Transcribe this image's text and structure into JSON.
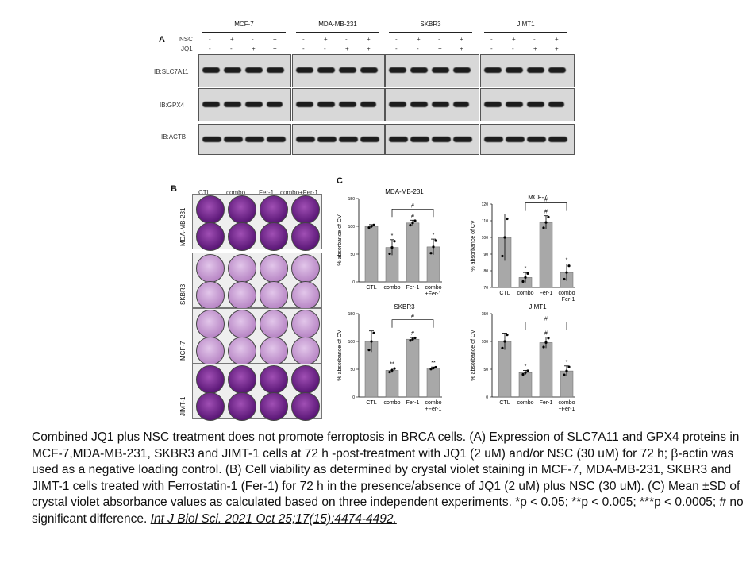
{
  "panel_a": {
    "letter": "A",
    "cell_lines": [
      "MCF-7",
      "MDA-MB-231",
      "SKBR3",
      "JIMT1"
    ],
    "row_labels": [
      "NSC",
      "JQ1"
    ],
    "nsc_signs": [
      "-",
      "+",
      "-",
      "+"
    ],
    "jq1_signs": [
      "-",
      "-",
      "+",
      "+"
    ],
    "blots": [
      "IB:SLC7A11",
      "IB:GPX4",
      "IB:ACTB"
    ]
  },
  "panel_b": {
    "letter": "B",
    "columns": [
      "CTL",
      "combo",
      "Fer-1",
      "combo+Fer-1"
    ],
    "rows": [
      "MDA-MB-231",
      "SKBR3",
      "MCF-7",
      "JIMT-1"
    ]
  },
  "chart_data": [
    {
      "type": "bar",
      "title": "MDA-MB-231",
      "ylabel": "% absorbance of CV",
      "categories": [
        "CTL",
        "combo",
        "Fer-1",
        "combo\n+Fer-1"
      ],
      "values": [
        100,
        62,
        106,
        63
      ],
      "errors": [
        3,
        14,
        5,
        14
      ],
      "ylim": [
        0,
        150
      ],
      "yticks": [
        0,
        50,
        100,
        150
      ],
      "marks": [
        "",
        "*",
        "#",
        "*"
      ],
      "bracket": "#"
    },
    {
      "type": "bar",
      "title": "MCF-7",
      "ylabel": "% absorbance of CV",
      "categories": [
        "CTL",
        "combo",
        "Fer-1",
        "combo\n+Fer-1"
      ],
      "values": [
        100,
        76,
        109,
        79
      ],
      "errors": [
        14,
        3,
        4,
        5
      ],
      "ylim": [
        70,
        120
      ],
      "yticks": [
        70,
        80,
        90,
        100,
        110,
        120
      ],
      "marks": [
        "",
        "*",
        "#",
        "*"
      ],
      "bracket": "#"
    },
    {
      "type": "bar",
      "title": "SKBR3",
      "ylabel": "% absorbance of CV",
      "categories": [
        "CTL",
        "combo",
        "Fer-1",
        "combo\n+Fer-1"
      ],
      "values": [
        100,
        48,
        104,
        52
      ],
      "errors": [
        19,
        4,
        3,
        2
      ],
      "ylim": [
        0,
        150
      ],
      "yticks": [
        0,
        50,
        100,
        150
      ],
      "marks": [
        "",
        "**",
        "#",
        "**"
      ],
      "bracket": "#"
    },
    {
      "type": "bar",
      "title": "JIMT1",
      "ylabel": "% absorbance of CV",
      "categories": [
        "CTL",
        "combo",
        "Fer-1",
        "combo\n+Fer-1"
      ],
      "values": [
        100,
        44,
        98,
        47
      ],
      "errors": [
        15,
        4,
        10,
        9
      ],
      "ylim": [
        0,
        150
      ],
      "yticks": [
        0,
        50,
        100,
        150
      ],
      "marks": [
        "",
        "*",
        "#",
        "*"
      ],
      "bracket": "#"
    }
  ],
  "panel_c_letter": "C",
  "caption": {
    "text": "Combined JQ1 plus NSC treatment does not promote ferroptosis in BRCA cells. (A) Expression of SLC7A11 and GPX4 proteins in MCF-7,MDA-MB-231, SKBR3 and JIMT-1 cells at 72 h -post-treatment with JQ1 (2 uM) and/or NSC (30 uM) for 72 h; β-actin was used as a negative loading control. (B) Cell viability as determined by crystal violet staining in MCF-7, MDA-MB-231, SKBR3 and JIMT-1 cells treated with Ferrostatin-1 (Fer-1) for 72 h in the presence/absence of JQ1 (2 uM) plus NSC (30 uM). (C) Mean ±SD of crystal violet absorbance values as calculated based on three independent experiments. *p < 0.05; **p < 0.005; ***p < 0.0005; # no significant difference.",
    "citation": "Int J Biol Sci. 2021 Oct 25;17(15):4474-4492."
  }
}
